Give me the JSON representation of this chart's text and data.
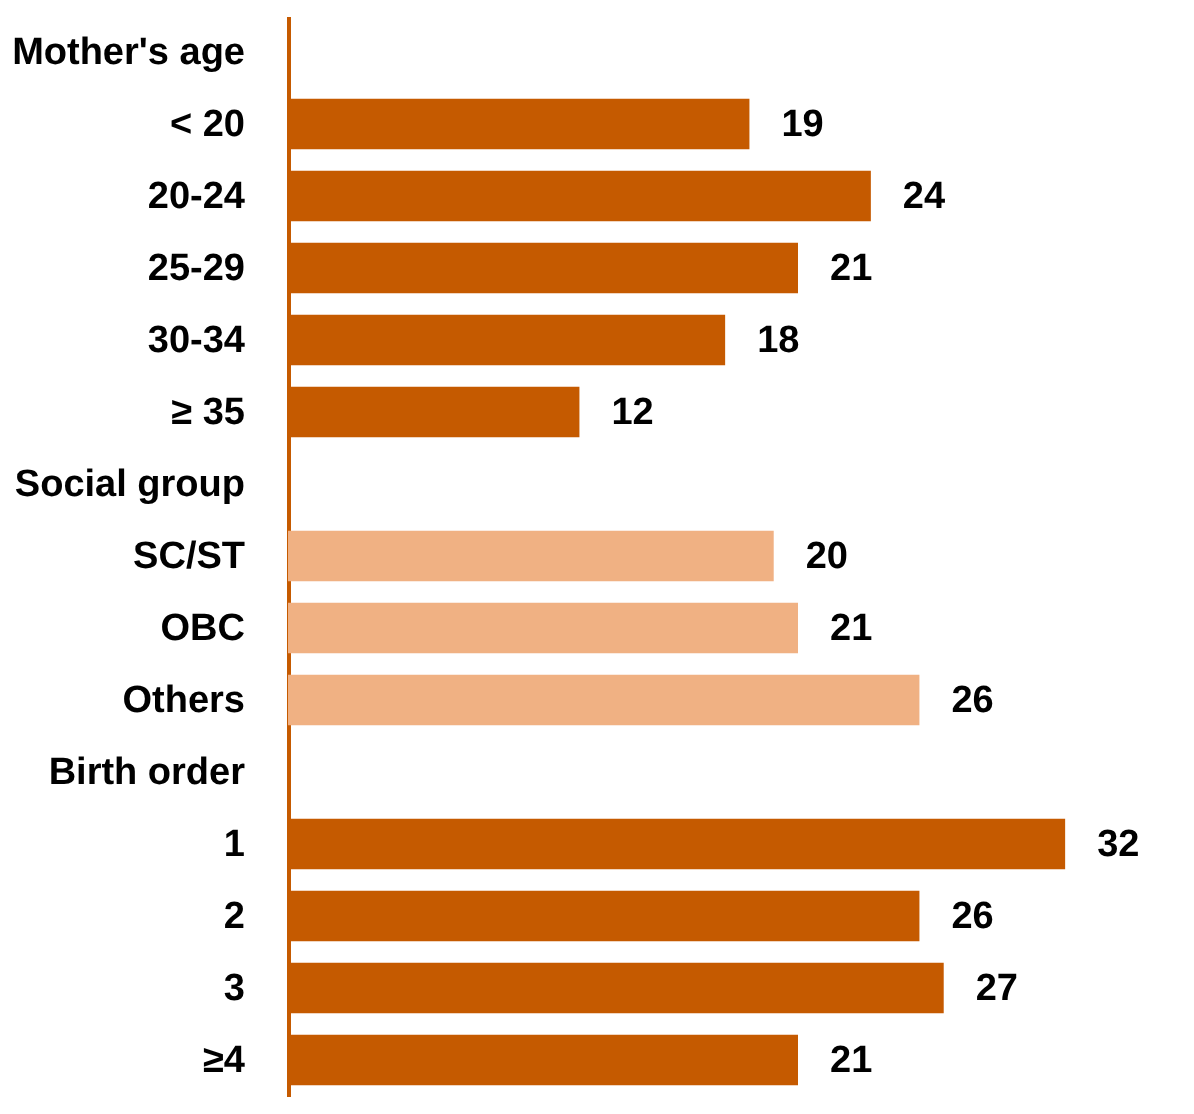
{
  "chart_data": {
    "type": "bar",
    "orientation": "horizontal",
    "categories": [
      "Mother's age",
      "< 20",
      "20-24",
      "25-29",
      "30-34",
      "≥ 35",
      "Social group",
      "SC/ST",
      "OBC",
      "Others",
      "Birth order",
      "1",
      "2",
      "3",
      "≥4"
    ],
    "values": [
      null,
      19,
      24,
      21,
      18,
      12,
      null,
      20,
      21,
      26,
      null,
      32,
      26,
      27,
      21
    ],
    "colors": [
      null,
      "#c55a00",
      "#c55a00",
      "#c55a00",
      "#c55a00",
      "#c55a00",
      null,
      "#f0b183",
      "#f0b183",
      "#f0b183",
      null,
      "#c55a00",
      "#c55a00",
      "#c55a00",
      "#c55a00"
    ],
    "xlim": [
      0,
      35
    ],
    "data_labels": true,
    "tick_labels": "y",
    "grid": false
  }
}
